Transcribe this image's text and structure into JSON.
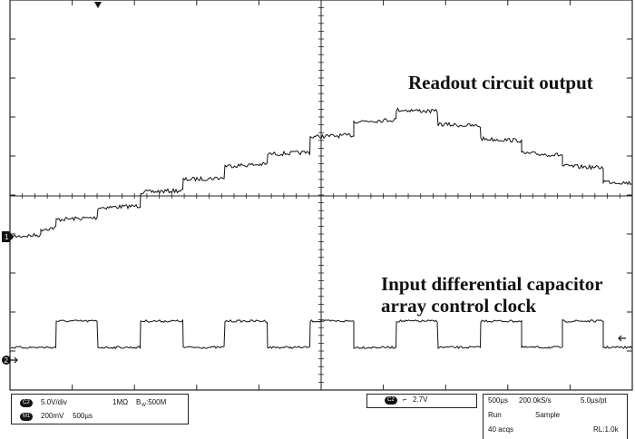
{
  "annotations": {
    "readout": "Readout circuit output",
    "clock_line1": "Input differential capacitor",
    "clock_line2": "array control clock"
  },
  "markers": {
    "ch1": "1",
    "ch2": "2"
  },
  "status": {
    "ch1_badge": "C2",
    "ch1_scale": "5.0V/div",
    "ch1_impedance": "1MΩ",
    "ch1_bw_prefix": "B",
    "ch1_bw_sub": "W",
    "ch1_bw": ":500M",
    "math_badge": "M1",
    "math_scale": "200mV",
    "math_time": "500µs",
    "trigger_badge": "C2",
    "trigger_slope": "⌐",
    "trigger_level": "2.7V",
    "timebase": "500µs",
    "sample_rate": "200.0kS/s",
    "point_interval": "5.0µs/pt",
    "run_state": "Run",
    "acq_mode": "Sample",
    "acq_count": "40 acqs",
    "record_length": "RL:1.0k"
  }
}
